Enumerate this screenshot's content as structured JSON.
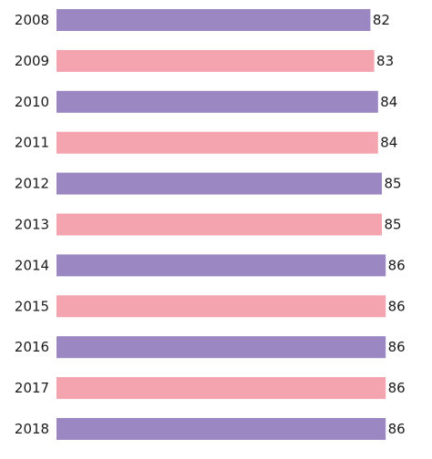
{
  "chart_data": {
    "type": "bar",
    "orientation": "horizontal",
    "categories": [
      "2008",
      "2009",
      "2010",
      "2011",
      "2012",
      "2013",
      "2014",
      "2015",
      "2016",
      "2017",
      "2018"
    ],
    "values": [
      82,
      83,
      84,
      84,
      85,
      85,
      86,
      86,
      86,
      86,
      86
    ],
    "value_labels": [
      "82",
      "83",
      "84",
      "84",
      "85",
      "85",
      "86",
      "86",
      "86",
      "86",
      "86"
    ],
    "colors": [
      "#9b87c1",
      "#f3a4ae",
      "#9b87c1",
      "#f3a4ae",
      "#9b87c1",
      "#f3a4ae",
      "#9b87c1",
      "#f3a4ae",
      "#9b87c1",
      "#f3a4ae",
      "#9b87c1"
    ],
    "title": "",
    "xlabel": "",
    "ylabel": "",
    "grid": false,
    "legend": "none"
  }
}
